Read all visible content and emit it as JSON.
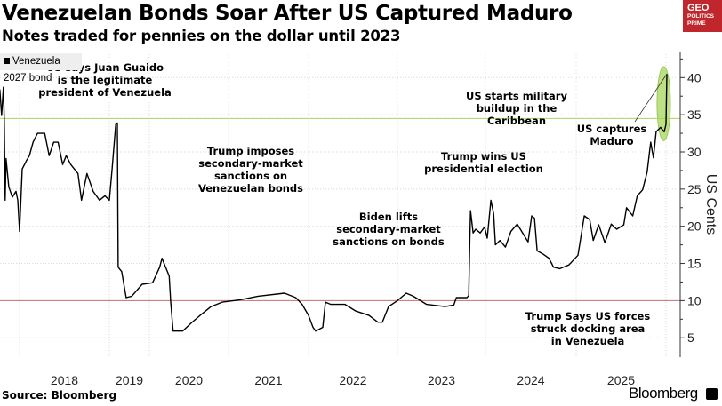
{
  "title": "Venezuelan Bonds Soar After US Captured Maduro",
  "subtitle": "Notes traded for pennies on the dollar until 2023",
  "logo": {
    "line1": "GEO",
    "line2": "POLITICS",
    "line3": "PRIME",
    "color": "#c0272d"
  },
  "source": "Source: Bloomberg",
  "brand": "Bloomberg",
  "chart_data": {
    "type": "line",
    "title": "Venezuelan Bonds Soar After US Captured Maduro",
    "subtitle": "Notes traded for pennies on the dollar until 2023",
    "ylabel": "US Cents",
    "xlabel": "",
    "y_axis_position": "right",
    "ylim": [
      2.4,
      43.5
    ],
    "yticks": [
      5,
      10,
      15,
      20,
      25,
      30,
      35,
      40
    ],
    "xticks": [
      "2018",
      "2019",
      "2020",
      "2021",
      "2022",
      "2023",
      "2024",
      "2025"
    ],
    "grid": true,
    "legend_placement": "top-left",
    "reference_lines": [
      {
        "value": 34.5,
        "color": "#a6d65a"
      },
      {
        "value": 10,
        "color": "#c9707a"
      }
    ],
    "highlight": {
      "shape": "ellipse",
      "color": "#a6d65a",
      "x_range": [
        2025.9,
        2026.05
      ],
      "y_range": [
        31.5,
        41.5
      ]
    },
    "series": [
      {
        "name": "Venezuela 2027 bond",
        "color": "#000000",
        "x": [
          2017.78,
          2017.8,
          2017.82,
          2017.83,
          2017.84,
          2017.85,
          2017.88,
          2017.92,
          2017.96,
          2017.98,
          2018.0,
          2018.03,
          2018.08,
          2018.11,
          2018.15,
          2018.2,
          2018.28,
          2018.33,
          2018.38,
          2018.43,
          2018.48,
          2018.52,
          2018.57,
          2018.65,
          2018.69,
          2018.75,
          2018.82,
          2018.89,
          2018.95,
          2019.0,
          2019.07,
          2019.16,
          2019.2,
          2019.22,
          2019.31,
          2019.42,
          2019.56,
          2019.82,
          2020.04,
          2020.13,
          2020.16,
          2020.25,
          2020.27,
          2020.3,
          2020.42,
          2020.53,
          2020.64,
          2020.78,
          2020.92,
          2021.14,
          2021.37,
          2021.7,
          2021.84,
          2021.92,
          2022.0,
          2022.05,
          2022.08,
          2022.16,
          2022.19,
          2022.25,
          2022.41,
          2022.53,
          2022.68,
          2022.78,
          2022.83,
          2022.9,
          2023.0,
          2023.1,
          2023.18,
          2023.33,
          2023.54,
          2023.64,
          2023.67,
          2023.79,
          2023.81,
          2023.82,
          2023.83,
          2023.86,
          2023.89,
          2023.94,
          2023.99,
          2024.02,
          2024.06,
          2024.09,
          2024.11,
          2024.16,
          2024.22,
          2024.28,
          2024.35,
          2024.41,
          2024.47,
          2024.51,
          2024.54,
          2024.57,
          2024.63,
          2024.7,
          2024.75,
          2024.82,
          2024.92,
          2025.02,
          2025.09,
          2025.15,
          2025.19,
          2025.25,
          2025.32,
          2025.39,
          2025.45,
          2025.53,
          2025.56,
          2025.63,
          2025.68,
          2025.74,
          2025.79,
          2025.83,
          2025.86,
          2025.89,
          2025.94,
          2025.98,
          2026.0,
          2026.01
        ],
        "values": [
          38.4,
          34.9,
          38.7,
          34.3,
          23.5,
          29.1,
          25.3,
          23.9,
          24.7,
          23.5,
          19.3,
          27.7,
          28.9,
          29.5,
          31.3,
          32.5,
          32.5,
          29.5,
          31.3,
          31.3,
          28.3,
          29.5,
          28.3,
          27.1,
          23.5,
          27.1,
          24.7,
          23.5,
          24.1,
          23.5,
          27.7,
          33.7,
          33.9,
          14.5,
          13.9,
          10.4,
          10.6,
          12.2,
          12.4,
          14.5,
          15.7,
          13.3,
          9.8,
          5.9,
          5.9,
          7.0,
          8.0,
          9.2,
          9.8,
          10.1,
          10.6,
          11.0,
          10.4,
          9.5,
          8.0,
          6.4,
          5.9,
          6.4,
          9.8,
          9.5,
          9.5,
          8.6,
          8.0,
          7.1,
          7.1,
          9.2,
          10.0,
          11.0,
          10.6,
          9.5,
          9.2,
          9.4,
          10.4,
          10.4,
          10.7,
          16.9,
          22.1,
          19.1,
          19.6,
          19.1,
          19.9,
          18.4,
          23.5,
          21.7,
          17.5,
          18.1,
          17.2,
          19.3,
          20.3,
          19.1,
          17.9,
          21.4,
          21.1,
          16.7,
          16.3,
          15.7,
          14.5,
          14.3,
          14.8,
          16.1,
          21.4,
          20.9,
          18.1,
          20.2,
          17.8,
          20.3,
          19.6,
          20.2,
          22.5,
          21.4,
          24.1,
          24.9,
          27.3,
          31.3,
          29.2,
          32.7,
          33.3,
          32.7,
          33.7,
          40.5
        ]
      }
    ],
    "annotations": [
      {
        "lines": [
          "US says Juan Guaido",
          "is the legitimate",
          "president of Venezuela"
        ]
      },
      {
        "lines": [
          "Trump imposes",
          "secondary-market",
          "sanctions on",
          "Venezuelan bonds"
        ]
      },
      {
        "lines": [
          "Biden lifts",
          "secondary-market",
          "sanctions on bonds"
        ]
      },
      {
        "lines": [
          "Trump wins US",
          "presidential election"
        ]
      },
      {
        "lines": [
          "US starts military",
          "buildup in the",
          "Caribbean"
        ]
      },
      {
        "lines": [
          "US captures",
          "Maduro"
        ]
      },
      {
        "lines": [
          "Trump Says US forces",
          "struck docking area",
          "in Venezuela"
        ]
      }
    ]
  }
}
